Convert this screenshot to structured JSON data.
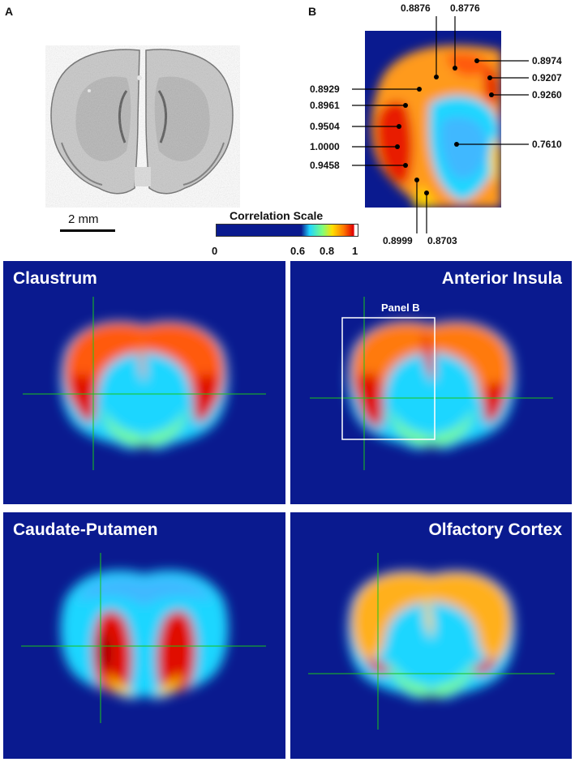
{
  "panel_labels": {
    "a": "A",
    "b": "B"
  },
  "scale_bar": {
    "label": "2 mm"
  },
  "correlation_scale": {
    "title": "Correlation Scale",
    "ticks": [
      "0",
      "0.6",
      "0.8",
      "1"
    ]
  },
  "panel_b_values": [
    "0.8876",
    "0.8776",
    "0.8974",
    "0.9207",
    "0.9260",
    "0.8929",
    "0.8961",
    "0.9504",
    "1.0000",
    "0.9458",
    "0.7610",
    "0.8999",
    "0.8703"
  ],
  "heatmap_panels": [
    {
      "title": "Claustrum"
    },
    {
      "title": "Anterior Insula",
      "box_label": "Panel B"
    },
    {
      "title": "Caudate-Putamen"
    },
    {
      "title": "Olfactory Cortex"
    }
  ],
  "colors": {
    "background_blue": "#0a1a8f",
    "crosshair": "#19c419"
  }
}
